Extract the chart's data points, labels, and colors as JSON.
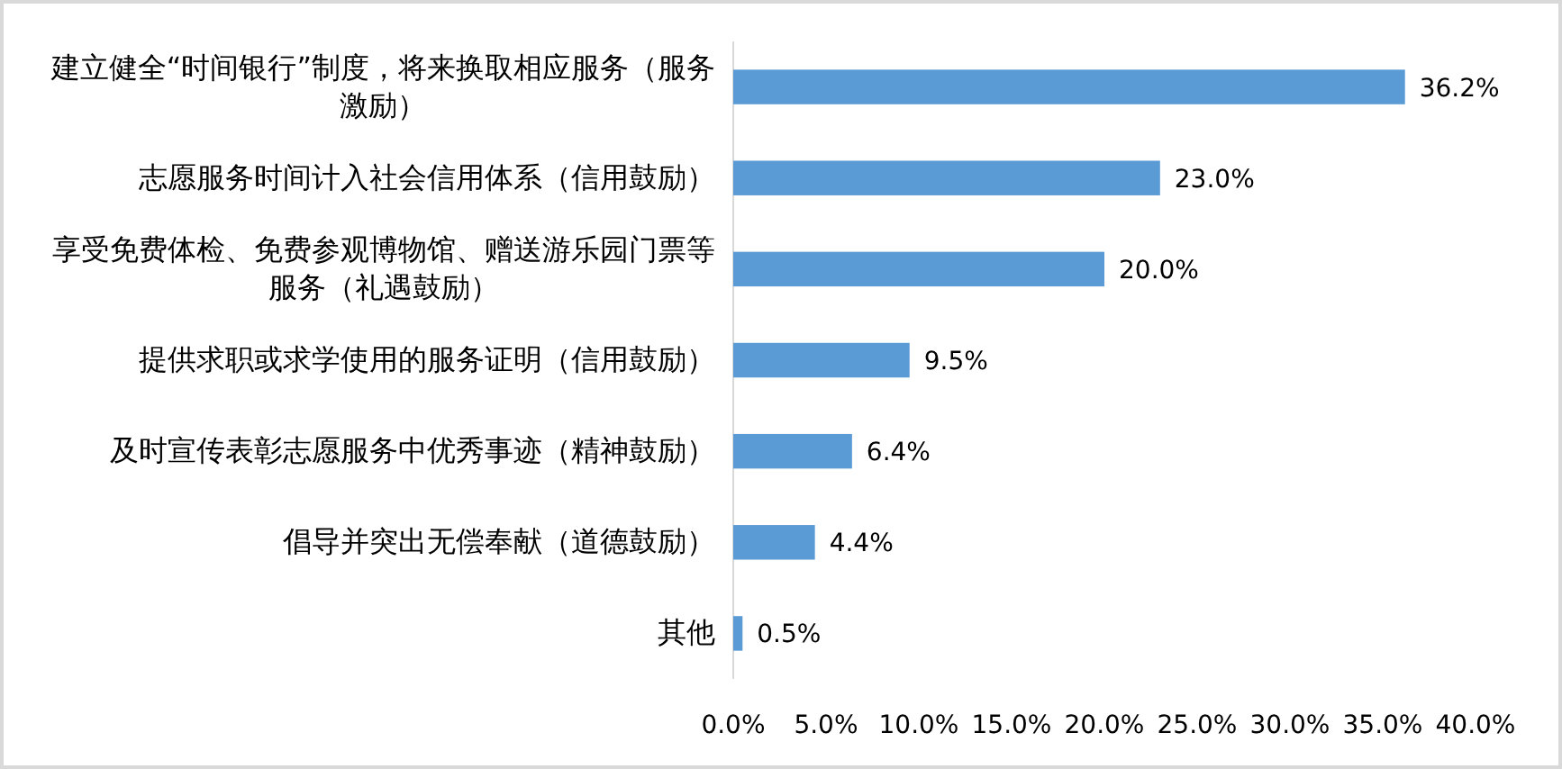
{
  "chart_data": {
    "type": "bar",
    "orientation": "horizontal",
    "categories": [
      "建立健全“时间银行”制度，将来换取相应服务（服务激励）",
      "志愿服务时间计入社会信用体系（信用鼓励）",
      "享受免费体检、免费参观博物馆、赠送游乐园门票等服务（礼遇鼓励）",
      "提供求职或求学使用的服务证明（信用鼓励）",
      "及时宣传表彰志愿服务中优秀事迹（精神鼓励）",
      "倡导并突出无偿奉献（道德鼓励）",
      "其他"
    ],
    "values": [
      36.2,
      23.0,
      20.0,
      9.5,
      6.4,
      4.4,
      0.5
    ],
    "value_labels": [
      "36.2%",
      "23.0%",
      "20.0%",
      "9.5%",
      "6.4%",
      "4.4%",
      "0.5%"
    ],
    "color": "#5b9bd5",
    "xlim": [
      0,
      40
    ],
    "xticks": [
      {
        "value": 0,
        "label": "0.0%"
      },
      {
        "value": 5,
        "label": "5.0%"
      },
      {
        "value": 10,
        "label": "10.0%"
      },
      {
        "value": 15,
        "label": "15.0%"
      },
      {
        "value": 20,
        "label": "20.0%"
      },
      {
        "value": 25,
        "label": "25.0%"
      },
      {
        "value": 30,
        "label": "30.0%"
      },
      {
        "value": 35,
        "label": "35.0%"
      },
      {
        "value": 40,
        "label": "40.0%"
      }
    ],
    "grid": false
  }
}
